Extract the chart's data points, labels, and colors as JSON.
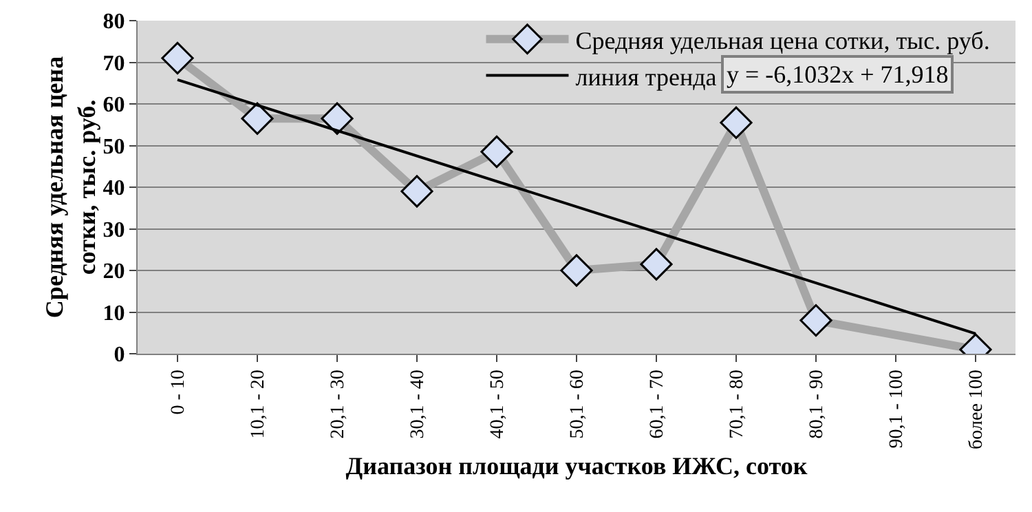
{
  "chart_data": {
    "type": "line",
    "xlabel": "Диапазон площади участков ИЖС, соток",
    "ylabel": "Средняя удельная цена сотки, тыс. руб.",
    "categories": [
      "0 - 10",
      "10,1 - 20",
      "20,1 - 30",
      "30,1 - 40",
      "40,1 - 50",
      "50,1 - 60",
      "60,1 - 70",
      "70,1 - 80",
      "80,1 - 90",
      "90,1 - 100",
      "более 100"
    ],
    "series": [
      {
        "name": "Средняя удельная цена сотки, тыс. руб.",
        "color": "#a6a6a6",
        "marker": "diamond",
        "values": [
          71,
          56.5,
          56.5,
          39,
          48.5,
          20,
          21.5,
          55.5,
          8,
          null,
          1
        ]
      },
      {
        "name": "линия тренда",
        "type": "line",
        "color": "#000000",
        "marker": "none",
        "x": [
          "0 - 10",
          "более 100"
        ],
        "values": [
          65.8,
          4.8
        ]
      }
    ],
    "ylim": [
      0,
      80
    ],
    "yticks": [
      0,
      10,
      20,
      30,
      40,
      50,
      60,
      70,
      80
    ],
    "grid": "y",
    "legend": "top right",
    "annotations": [
      "y = -6,1032x + 71,918"
    ]
  }
}
